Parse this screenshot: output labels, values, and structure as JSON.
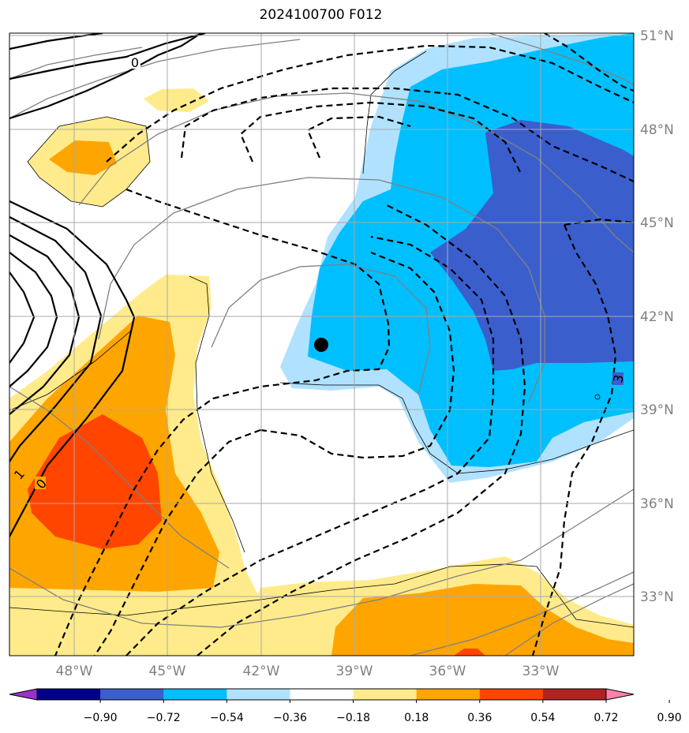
{
  "title": "2024100700 F012",
  "lat_labels": [
    "51°N",
    "48°N",
    "45°N",
    "42°N",
    "39°N",
    "36°N",
    "33°N"
  ],
  "lon_labels": [
    "48°W",
    "45°W",
    "42°W",
    "39°W",
    "36°W",
    "33°W"
  ],
  "colorbar": {
    "ticks": [
      "−0.90",
      "−0.72",
      "−0.54",
      "−0.36",
      "−0.18",
      "0.18",
      "0.36",
      "0.54",
      "0.72",
      "0.90"
    ],
    "colors": [
      "#9932cc",
      "#00008b",
      "#3a5fcd",
      "#00bfff",
      "#b0e2ff",
      "#ffffff",
      "#ffeb8b",
      "#ffa500",
      "#ff4500",
      "#b22222",
      "#ff82ab"
    ]
  },
  "contour_labels": [
    "0",
    "0",
    "1",
    "3"
  ],
  "marker": "storm-center-dot"
}
